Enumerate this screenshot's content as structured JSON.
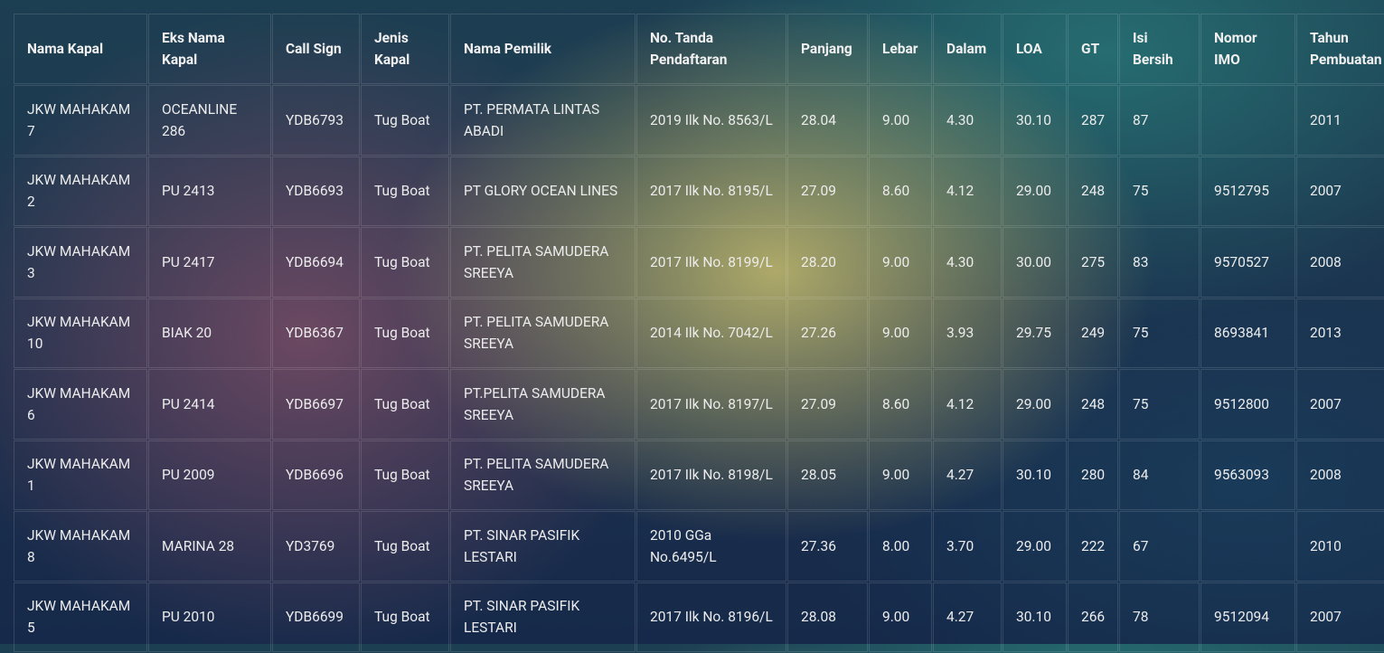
{
  "table": {
    "header": [
      "Nama Kapal",
      "Eks Nama Kapal",
      "Call Sign",
      "Jenis Kapal",
      "Nama Pemilik",
      "No. Tanda Pendaftaran",
      "Panjang",
      "Lebar",
      "Dalam",
      "LOA",
      "GT",
      "Isi Bersih",
      "Nomor IMO",
      "Tahun Pembuatan"
    ],
    "rows": [
      [
        "JKW MAHAKAM 7",
        "OCEANLINE 286",
        "YDB6793",
        "Tug Boat",
        "PT. PERMATA LINTAS ABADI",
        "2019 Ilk No. 8563/L",
        "28.04",
        "9.00",
        "4.30",
        "30.10",
        "287",
        "87",
        null,
        "2011"
      ],
      [
        "JKW MAHAKAM 2",
        "PU 2413",
        "YDB6693",
        "Tug Boat",
        "PT GLORY OCEAN LINES",
        "2017 Ilk No. 8195/L",
        "27.09",
        "8.60",
        "4.12",
        "29.00",
        "248",
        "75",
        "9512795",
        "2007"
      ],
      [
        "JKW MAHAKAM 3",
        "PU 2417",
        "YDB6694",
        "Tug Boat",
        "PT. PELITA SAMUDERA SREEYA",
        "2017 Ilk No. 8199/L",
        "28.20",
        "9.00",
        "4.30",
        "30.00",
        "275",
        "83",
        "9570527",
        "2008"
      ],
      [
        "JKW MAHAKAM 10",
        "BIAK 20",
        "YDB6367",
        "Tug Boat",
        "PT. PELITA SAMUDERA SREEYA",
        "2014 Ilk No. 7042/L",
        "27.26",
        "9.00",
        "3.93",
        "29.75",
        "249",
        "75",
        "8693841",
        "2013"
      ],
      [
        "JKW MAHAKAM 6",
        "PU 2414",
        "YDB6697",
        "Tug Boat",
        "PT.PELITA SAMUDERA SREEYA",
        "2017 Ilk No. 8197/L",
        "27.09",
        "8.60",
        "4.12",
        "29.00",
        "248",
        "75",
        "9512800",
        "2007"
      ],
      [
        "JKW MAHAKAM 1",
        "PU 2009",
        "YDB6696",
        "Tug Boat",
        "PT. PELITA SAMUDERA SREEYA",
        "2017 Ilk No. 8198/L",
        "28.05",
        "9.00",
        "4.27",
        "30.10",
        "280",
        "84",
        "9563093",
        "2008"
      ],
      [
        "JKW MAHAKAM 8",
        "MARINA 28",
        "YD3769",
        "Tug Boat",
        "PT. SINAR PASIFIK LESTARI",
        "2010 GGa No.6495/L",
        "27.36",
        "8.00",
        "3.70",
        "29.00",
        "222",
        "67",
        null,
        "2010"
      ],
      [
        "JKW MAHAKAM 5",
        "PU 2010",
        "YDB6699",
        "Tug Boat",
        "PT. SINAR PASIFIK LESTARI",
        "2017 Ilk No. 8196/L",
        "28.08",
        "9.00",
        "4.27",
        "30.10",
        "266",
        "78",
        "9512094",
        "2007"
      ]
    ]
  }
}
